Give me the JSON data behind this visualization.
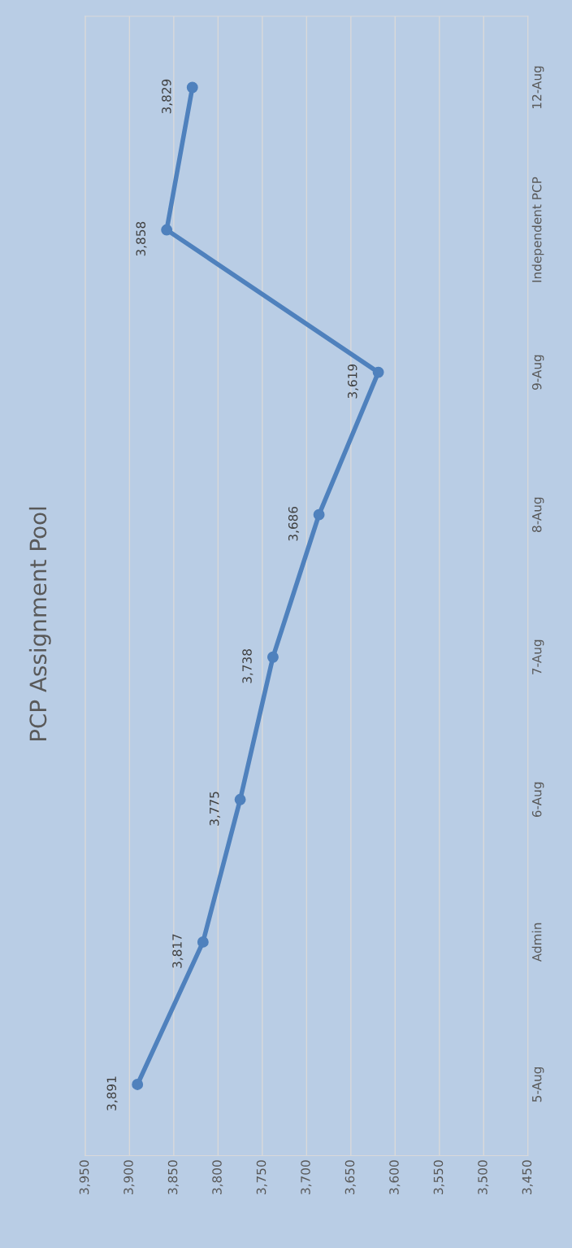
{
  "chart_data": {
    "type": "line",
    "title": "PCP Assignment Pool",
    "orientation": "horizontal",
    "categories": [
      "12-Aug",
      "Independent PCP",
      "9-Aug",
      "8-Aug",
      "7-Aug",
      "6-Aug",
      "Admin",
      "5-Aug"
    ],
    "series": [
      {
        "color": "#4f81bd",
        "values": [
          3829,
          3858,
          3619,
          3686,
          3738,
          3775,
          3817,
          3891
        ]
      }
    ],
    "xlim": [
      3950,
      3450
    ],
    "xticks": [
      {
        "value": 3950,
        "label": "3,950"
      },
      {
        "value": 3900,
        "label": "3,900"
      },
      {
        "value": 3850,
        "label": "3,850"
      },
      {
        "value": 3800,
        "label": "3,800"
      },
      {
        "value": 3750,
        "label": "3,750"
      },
      {
        "value": 3700,
        "label": "3,700"
      },
      {
        "value": 3650,
        "label": "3,650"
      },
      {
        "value": 3600,
        "label": "3,600"
      },
      {
        "value": 3550,
        "label": "3,550"
      },
      {
        "value": 3500,
        "label": "3,500"
      },
      {
        "value": 3450,
        "label": "3,450"
      }
    ],
    "value_labels": [
      "3,829",
      "3,858",
      "3,619",
      "3,686",
      "3,738",
      "3,775",
      "3,817",
      "3,891"
    ],
    "grid": "x",
    "marker": "circle",
    "line_style": "solid",
    "legend": false
  }
}
